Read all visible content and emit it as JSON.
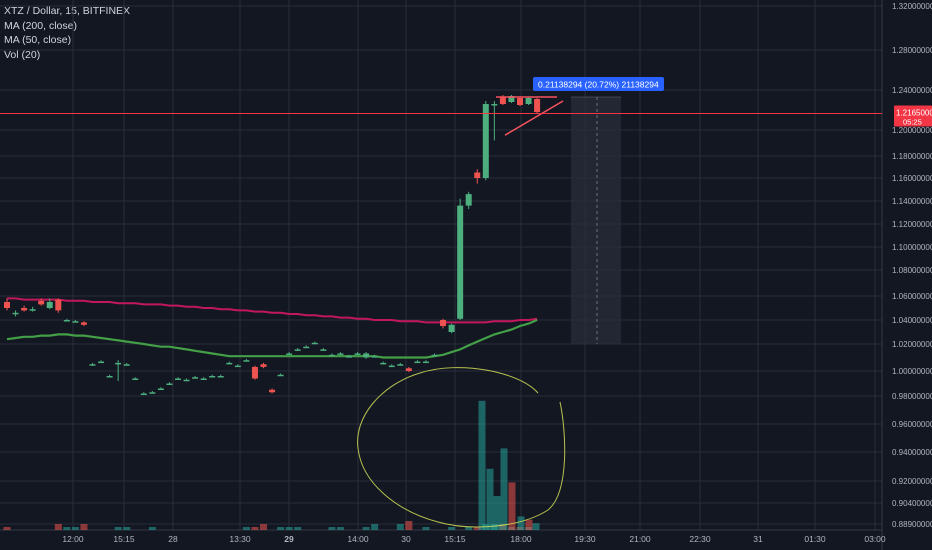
{
  "legend": {
    "symbol_line": "XTZ / Dollar, 15, BITFINEX",
    "ma200": "MA (200, close)",
    "ma50": "MA (50, close)",
    "vol": "Vol (20)"
  },
  "colors": {
    "background": "#131722",
    "grid": "#2a2e39",
    "up": "#4caf7d",
    "down": "#ef5350",
    "ma200": "#c2185b",
    "ma50": "#43a047",
    "price_line": "#f23645",
    "annotation_circle": "#d4e157",
    "measure_label": "#2962ff",
    "text": "#b2b5be"
  },
  "chart_data": {
    "type": "candlestick",
    "title": "XTZ / Dollar, 15, BITFINEX",
    "ylim": [
      0.885,
      1.325
    ],
    "y_ticks": [
      "1.32000000",
      "1.28000000",
      "1.24000000",
      "1.20000000",
      "1.18000000",
      "1.16000000",
      "1.14000000",
      "1.12000000",
      "1.10000000",
      "1.08000000",
      "1.06000000",
      "1.04000000",
      "1.02000000",
      "1.00000000",
      "0.98000000",
      "0.96000000",
      "0.94000000",
      "0.92000000",
      "0.90400000",
      "0.88900000"
    ],
    "y_tick_values": [
      1.32,
      1.28,
      1.24,
      1.2,
      1.18,
      1.16,
      1.14,
      1.12,
      1.1,
      1.08,
      1.06,
      1.04,
      1.02,
      1.0,
      0.98,
      0.96,
      0.94,
      0.92,
      0.904,
      0.889
    ],
    "x_ticks": [
      "12:00",
      "15:15",
      "28",
      "13:30",
      "29",
      "14:00",
      "30",
      "15:15",
      "18:00",
      "19:30",
      "21:00",
      "22:30",
      "31",
      "01:30",
      "03:00"
    ],
    "x_tick_bold": [
      "29"
    ],
    "current_price": 1.2165,
    "current_price_label": "1.21650000",
    "countdown_label": "05:25",
    "measure_label": "0.21138294 (20.72%) 21138294",
    "candles": [
      {
        "o": 1.055,
        "c": 1.05,
        "h": 1.058,
        "l": 1.048
      },
      {
        "o": 1.045,
        "c": 1.046,
        "h": 1.048,
        "l": 1.043
      },
      {
        "o": 1.05,
        "c": 1.048,
        "h": 1.052,
        "l": 1.047
      },
      {
        "o": 1.049,
        "c": 1.049,
        "h": 1.051,
        "l": 1.047
      },
      {
        "o": 1.056,
        "c": 1.053,
        "h": 1.058,
        "l": 1.052
      },
      {
        "o": 1.05,
        "c": 1.055,
        "h": 1.058,
        "l": 1.049
      },
      {
        "o": 1.057,
        "c": 1.048,
        "h": 1.058,
        "l": 1.046
      },
      {
        "o": 1.04,
        "c": 1.04,
        "h": 1.041,
        "l": 1.039
      },
      {
        "o": 1.039,
        "c": 1.039,
        "h": 1.04,
        "l": 1.038
      },
      {
        "o": 1.038,
        "c": 1.036,
        "h": 1.039,
        "l": 1.035
      },
      {
        "o": 1.005,
        "c": 1.005,
        "h": 1.006,
        "l": 1.004
      },
      {
        "o": 1.007,
        "c": 1.007,
        "h": 1.008,
        "l": 1.006
      },
      {
        "o": 0.996,
        "c": 0.996,
        "h": 0.997,
        "l": 0.995
      },
      {
        "o": 1.006,
        "c": 1.006,
        "h": 1.008,
        "l": 0.992
      },
      {
        "o": 1.005,
        "c": 1.005,
        "h": 1.006,
        "l": 1.004
      },
      {
        "o": 0.994,
        "c": 0.994,
        "h": 0.995,
        "l": 0.993
      },
      {
        "o": 0.982,
        "c": 0.982,
        "h": 0.983,
        "l": 0.981
      },
      {
        "o": 0.983,
        "c": 0.983,
        "h": 0.984,
        "l": 0.982
      },
      {
        "o": 0.986,
        "c": 0.986,
        "h": 0.987,
        "l": 0.985
      },
      {
        "o": 0.99,
        "c": 0.99,
        "h": 0.991,
        "l": 0.989
      },
      {
        "o": 0.994,
        "c": 0.994,
        "h": 0.995,
        "l": 0.993
      },
      {
        "o": 0.993,
        "c": 0.993,
        "h": 0.994,
        "l": 0.992
      },
      {
        "o": 0.995,
        "c": 0.995,
        "h": 0.996,
        "l": 0.994
      },
      {
        "o": 0.994,
        "c": 0.994,
        "h": 0.995,
        "l": 0.993
      },
      {
        "o": 0.996,
        "c": 0.996,
        "h": 0.997,
        "l": 0.995
      },
      {
        "o": 0.996,
        "c": 0.996,
        "h": 0.997,
        "l": 0.995
      },
      {
        "o": 1.006,
        "c": 1.006,
        "h": 1.007,
        "l": 1.005
      },
      {
        "o": 1.004,
        "c": 1.004,
        "h": 1.005,
        "l": 1.003
      },
      {
        "o": 1.008,
        "c": 1.008,
        "h": 1.009,
        "l": 1.007
      },
      {
        "o": 1.003,
        "c": 0.994,
        "h": 1.004,
        "l": 0.993
      },
      {
        "o": 1.005,
        "c": 1.003,
        "h": 1.006,
        "l": 1.002
      },
      {
        "o": 0.985,
        "c": 0.983,
        "h": 0.986,
        "l": 0.982
      },
      {
        "o": 0.997,
        "c": 0.997,
        "h": 0.998,
        "l": 0.996
      },
      {
        "o": 1.013,
        "c": 1.013,
        "h": 1.014,
        "l": 1.012
      },
      {
        "o": 1.016,
        "c": 1.016,
        "h": 1.017,
        "l": 1.015
      },
      {
        "o": 1.018,
        "c": 1.018,
        "h": 1.019,
        "l": 1.017
      },
      {
        "o": 1.021,
        "c": 1.021,
        "h": 1.022,
        "l": 1.02
      },
      {
        "o": 1.016,
        "c": 1.016,
        "h": 1.017,
        "l": 1.015
      },
      {
        "o": 1.012,
        "c": 1.012,
        "h": 1.013,
        "l": 1.011
      },
      {
        "o": 1.013,
        "c": 1.013,
        "h": 1.014,
        "l": 1.012
      },
      {
        "o": 1.011,
        "c": 1.011,
        "h": 1.012,
        "l": 1.01
      },
      {
        "o": 1.013,
        "c": 1.013,
        "h": 1.014,
        "l": 1.012
      },
      {
        "o": 1.01,
        "c": 1.013,
        "h": 1.014,
        "l": 1.009
      },
      {
        "o": 1.011,
        "c": 1.011,
        "h": 1.012,
        "l": 1.01
      },
      {
        "o": 1.006,
        "c": 1.006,
        "h": 1.007,
        "l": 1.005
      },
      {
        "o": 1.004,
        "c": 1.004,
        "h": 1.005,
        "l": 1.003
      },
      {
        "o": 1.005,
        "c": 1.005,
        "h": 1.006,
        "l": 1.004
      },
      {
        "o": 1.002,
        "c": 1.0,
        "h": 1.003,
        "l": 0.999
      },
      {
        "o": 1.007,
        "c": 1.007,
        "h": 1.008,
        "l": 1.006
      },
      {
        "o": 1.007,
        "c": 1.007,
        "h": 1.008,
        "l": 1.006
      },
      {
        "o": 1.012,
        "c": 1.012,
        "h": 1.013,
        "l": 1.011
      },
      {
        "o": 1.04,
        "c": 1.035,
        "h": 1.041,
        "l": 1.033
      },
      {
        "o": 1.03,
        "c": 1.036,
        "h": 1.037,
        "l": 1.029
      },
      {
        "o": 1.041,
        "c": 1.136,
        "h": 1.142,
        "l": 1.04
      },
      {
        "o": 1.136,
        "c": 1.146,
        "h": 1.148,
        "l": 1.133
      },
      {
        "o": 1.165,
        "c": 1.16,
        "h": 1.168,
        "l": 1.155
      },
      {
        "o": 1.16,
        "c": 1.226,
        "h": 1.229,
        "l": 1.158
      },
      {
        "o": 1.225,
        "c": 1.226,
        "h": 1.229,
        "l": 1.192
      },
      {
        "o": 1.233,
        "c": 1.226,
        "h": 1.235,
        "l": 1.225
      },
      {
        "o": 1.228,
        "c": 1.234,
        "h": 1.235,
        "l": 1.227
      },
      {
        "o": 1.232,
        "c": 1.225,
        "h": 1.233,
        "l": 1.224
      },
      {
        "o": 1.226,
        "c": 1.232,
        "h": 1.233,
        "l": 1.225
      },
      {
        "o": 1.231,
        "c": 1.218,
        "h": 1.232,
        "l": 1.216
      }
    ],
    "volume": [
      1,
      0,
      0,
      0,
      0,
      0,
      2,
      1,
      1,
      2,
      0,
      0,
      0,
      1,
      1,
      0,
      0,
      1,
      0,
      0,
      0,
      0,
      0,
      0,
      0,
      0,
      0,
      0,
      1,
      1,
      2,
      0,
      1,
      1,
      1,
      0,
      0,
      0,
      1,
      1,
      0,
      0,
      1,
      2,
      0,
      0,
      2,
      3,
      0,
      1,
      0,
      0,
      1,
      0,
      1,
      1,
      2,
      2,
      2,
      1,
      1,
      1,
      0
    ],
    "volume_spikes": [
      {
        "value": 0.38,
        "dir": "up"
      },
      {
        "value": 0.18,
        "dir": "up"
      },
      {
        "value": 0.1,
        "dir": "up"
      },
      {
        "value": 0.24,
        "dir": "up"
      },
      {
        "value": 0.14,
        "dir": "down"
      },
      {
        "value": 0.04,
        "dir": "up"
      },
      {
        "value": 0.03,
        "dir": "down"
      },
      {
        "value": 0.02,
        "dir": "up"
      }
    ],
    "ma200": [
      1.058,
      1.058,
      1.057,
      1.057,
      1.057,
      1.057,
      1.057,
      1.056,
      1.056,
      1.056,
      1.055,
      1.055,
      1.055,
      1.054,
      1.054,
      1.054,
      1.053,
      1.053,
      1.053,
      1.052,
      1.052,
      1.051,
      1.051,
      1.05,
      1.05,
      1.049,
      1.049,
      1.048,
      1.048,
      1.047,
      1.047,
      1.046,
      1.046,
      1.045,
      1.045,
      1.044,
      1.044,
      1.043,
      1.043,
      1.042,
      1.042,
      1.041,
      1.041,
      1.04,
      1.04,
      1.04,
      1.039,
      1.039,
      1.039,
      1.038,
      1.038,
      1.038,
      1.038,
      1.038,
      1.038,
      1.038,
      1.038,
      1.039,
      1.039,
      1.039,
      1.04,
      1.04,
      1.041
    ],
    "ma50": [
      1.024,
      1.025,
      1.026,
      1.026,
      1.027,
      1.027,
      1.028,
      1.028,
      1.027,
      1.027,
      1.026,
      1.025,
      1.024,
      1.023,
      1.022,
      1.021,
      1.02,
      1.019,
      1.018,
      1.018,
      1.017,
      1.016,
      1.015,
      1.014,
      1.013,
      1.012,
      1.011,
      1.011,
      1.011,
      1.011,
      1.011,
      1.011,
      1.011,
      1.011,
      1.011,
      1.011,
      1.011,
      1.011,
      1.011,
      1.011,
      1.011,
      1.011,
      1.011,
      1.011,
      1.01,
      1.01,
      1.01,
      1.01,
      1.01,
      1.01,
      1.011,
      1.012,
      1.014,
      1.016,
      1.019,
      1.022,
      1.025,
      1.028,
      1.03,
      1.032,
      1.035,
      1.037,
      1.04
    ]
  }
}
